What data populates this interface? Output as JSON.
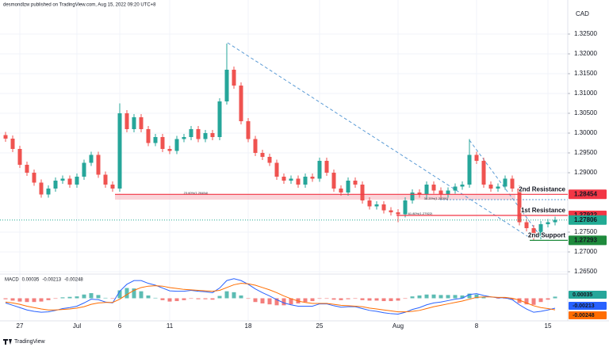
{
  "header": "desmondlzw published on TradingView.com, Aug 15, 2022 09:20 UTC+8",
  "footer": "TradingView",
  "chart_data": {
    "type": "candlestick",
    "currency": "CAD",
    "up_color": "#26a69a",
    "down_color": "#ef5350",
    "categories": [
      null,
      null,
      "27",
      null,
      null,
      null,
      null,
      null,
      null,
      null,
      "Jul",
      null,
      null,
      null,
      null,
      null,
      "6",
      null,
      null,
      null,
      null,
      null,
      null,
      "11",
      null,
      null,
      null,
      null,
      null,
      null,
      null,
      null,
      null,
      null,
      "18",
      null,
      null,
      null,
      null,
      null,
      null,
      null,
      null,
      null,
      "25",
      null,
      null,
      null,
      null,
      null,
      null,
      null,
      null,
      null,
      null,
      "Aug",
      null,
      null,
      null,
      null,
      null,
      null,
      null,
      null,
      null,
      null,
      "8",
      null,
      null,
      null,
      null,
      null,
      null,
      null,
      null,
      null,
      "15",
      null
    ],
    "open": [
      1.2995,
      1.2986,
      1.296,
      1.292,
      1.29,
      1.2875,
      1.2845,
      1.286,
      1.288,
      1.2885,
      1.287,
      1.289,
      1.2925,
      1.2945,
      1.2895,
      1.287,
      1.286,
      1.305,
      1.301,
      1.304,
      1.301,
      1.2975,
      1.299,
      1.296,
      1.2955,
      1.2985,
      1.299,
      1.301,
      1.2985,
      1.3,
      1.299,
      1.308,
      1.316,
      1.312,
      1.303,
      1.2985,
      1.295,
      1.294,
      1.2925,
      1.289,
      1.288,
      1.2885,
      1.287,
      1.289,
      1.2885,
      1.293,
      1.29,
      1.286,
      1.285,
      1.288,
      1.287,
      1.283,
      1.2815,
      1.282,
      1.2805,
      1.28,
      1.2795,
      1.283,
      1.285,
      1.2845,
      1.287,
      1.2855,
      1.2845,
      1.2855,
      1.2865,
      1.287,
      1.2945,
      1.293,
      1.287,
      1.286,
      1.2865,
      1.2885,
      1.286,
      1.2775,
      1.276,
      1.274,
      1.277,
      1.2775
    ],
    "high": [
      1.3003,
      1.2994,
      1.2968,
      1.2928,
      1.2908,
      1.2883,
      1.2868,
      1.2888,
      1.2893,
      1.2893,
      1.2898,
      1.2933,
      1.2953,
      1.2953,
      1.2903,
      1.2878,
      1.3075,
      1.3058,
      1.3048,
      1.3048,
      1.3018,
      1.2998,
      1.2998,
      1.2968,
      1.2993,
      1.2998,
      1.3018,
      1.3018,
      1.3008,
      1.3008,
      1.3088,
      1.3226,
      1.3168,
      1.3128,
      1.3038,
      1.2993,
      1.2958,
      1.2948,
      1.2933,
      1.2898,
      1.2893,
      1.2893,
      1.2898,
      1.2898,
      1.2938,
      1.2938,
      1.2908,
      1.2868,
      1.2888,
      1.2888,
      1.2878,
      1.2838,
      1.2828,
      1.2828,
      1.2813,
      1.2808,
      1.2838,
      1.2858,
      1.2858,
      1.2878,
      1.2878,
      1.2863,
      1.2863,
      1.2873,
      1.2878,
      1.2985,
      1.2953,
      1.2938,
      1.2878,
      1.2873,
      1.2893,
      1.2893,
      1.2868,
      1.2783,
      1.2768,
      1.2778,
      1.2783,
      1.2789
    ],
    "low": [
      1.2978,
      1.2952,
      1.2912,
      1.2892,
      1.2867,
      1.2837,
      1.2837,
      1.2852,
      1.2872,
      1.2862,
      1.2862,
      1.2882,
      1.2917,
      1.2887,
      1.2862,
      1.2852,
      1.2852,
      1.3002,
      1.3002,
      1.3002,
      1.2967,
      1.2967,
      1.2952,
      1.2947,
      1.2947,
      1.2977,
      1.2982,
      1.2977,
      1.2977,
      1.2982,
      1.2982,
      1.3072,
      1.3112,
      1.3022,
      1.2977,
      1.2942,
      1.2932,
      1.2917,
      1.2882,
      1.2872,
      1.2872,
      1.2862,
      1.2862,
      1.2877,
      1.2877,
      1.2892,
      1.2852,
      1.2842,
      1.2842,
      1.2862,
      1.2822,
      1.2807,
      1.2807,
      1.2797,
      1.2792,
      1.2775,
      1.2787,
      1.2822,
      1.2837,
      1.2837,
      1.2847,
      1.2837,
      1.2837,
      1.2847,
      1.2857,
      1.2862,
      1.2922,
      1.2862,
      1.2852,
      1.2852,
      1.2857,
      1.2852,
      1.2767,
      1.2752,
      1.2729,
      1.2732,
      1.2762,
      1.2767
    ],
    "close": [
      1.2986,
      1.296,
      1.292,
      1.29,
      1.2875,
      1.2845,
      1.286,
      1.288,
      1.2885,
      1.287,
      1.289,
      1.2925,
      1.2945,
      1.2895,
      1.287,
      1.286,
      1.305,
      1.301,
      1.304,
      1.301,
      1.2975,
      1.299,
      1.296,
      1.2955,
      1.2985,
      1.299,
      1.301,
      1.2985,
      1.3,
      1.299,
      1.308,
      1.316,
      1.312,
      1.303,
      1.2985,
      1.295,
      1.294,
      1.2925,
      1.289,
      1.288,
      1.2885,
      1.287,
      1.289,
      1.2885,
      1.293,
      1.29,
      1.286,
      1.285,
      1.288,
      1.287,
      1.283,
      1.2815,
      1.282,
      1.2805,
      1.28,
      1.2795,
      1.283,
      1.285,
      1.2845,
      1.287,
      1.2855,
      1.2845,
      1.2855,
      1.2865,
      1.287,
      1.2945,
      1.293,
      1.287,
      1.286,
      1.2865,
      1.2885,
      1.286,
      1.2775,
      1.276,
      1.274,
      1.277,
      1.2775,
      1.2781
    ],
    "ylim": [
      1.2646,
      1.3316
    ],
    "yticks": [
      {
        "value": 1.325,
        "label": "1.32500"
      },
      {
        "value": 1.32,
        "label": "1.32000"
      },
      {
        "value": 1.315,
        "label": "1.31500"
      },
      {
        "value": 1.31,
        "label": "1.31000"
      },
      {
        "value": 1.305,
        "label": "1.30500"
      },
      {
        "value": 1.3,
        "label": "1.30000"
      },
      {
        "value": 1.295,
        "label": "1.29500"
      },
      {
        "value": 1.29,
        "label": "1.29000"
      },
      {
        "value": 1.275,
        "label": "1.27500"
      },
      {
        "value": 1.27,
        "label": "1.27000"
      },
      {
        "value": 1.265,
        "label": "1.26500"
      }
    ],
    "grid": true,
    "levels": [
      {
        "label": "2nd Resistance",
        "value": 1.28454,
        "color": "#f23645"
      },
      {
        "label": "1st Resistance",
        "value": 1.27922,
        "color": "#f23645"
      },
      {
        "label": "2nd Support",
        "value": 1.27293,
        "color": "#1e8a3c"
      }
    ],
    "last_price": 1.27806,
    "last_color": "#22ab94",
    "fib_labels": [
      "23.60%(1.28454)",
      "38.20%(1.28291)",
      "61.80%(1.27922)"
    ],
    "macd": {
      "title": "MACD",
      "ylim": [
        -0.0045,
        0.0045
      ],
      "histogram": {
        "up_color": "#26a69a",
        "down_color": "#ef5350",
        "values": [
          -0.0002,
          -0.0005,
          -0.0007,
          -0.0008,
          -0.0008,
          -0.0007,
          -0.0004,
          -0.0001,
          0.0002,
          0.0003,
          0.0004,
          0.0008,
          0.0011,
          0.0007,
          0.0001,
          -0.0001,
          0.0017,
          0.0022,
          0.0021,
          0.0015,
          0.0006,
          0.0001,
          -0.0004,
          -0.0007,
          -0.0006,
          -0.0004,
          -0.0001,
          -0.0002,
          -0.0002,
          -0.0003,
          0.0005,
          0.0015,
          0.0013,
          0.0006,
          -0.0001,
          -0.0008,
          -0.0011,
          -0.0013,
          -0.0015,
          -0.0015,
          -0.0013,
          -0.0011,
          -0.0008,
          -0.0006,
          -0.0001,
          -0.0001,
          -0.0003,
          -0.0004,
          -0.0002,
          -0.0001,
          -0.0004,
          -0.0005,
          -0.0005,
          -0.0006,
          -0.0006,
          -0.0005,
          -0.0001,
          0.0004,
          0.0006,
          0.0008,
          0.0008,
          0.0007,
          0.0007,
          0.0007,
          0.0006,
          0.001,
          0.0008,
          0.0003,
          0,
          -0.0001,
          -0.0001,
          -0.0003,
          -0.001,
          -0.0013,
          -0.0014,
          -0.0008,
          -0.0003,
          0.00035
        ]
      },
      "line": {
        "color": "#2962ff",
        "values": [
          -0.001,
          -0.0015,
          -0.002,
          -0.0025,
          -0.0028,
          -0.003,
          -0.0029,
          -0.0026,
          -0.0022,
          -0.002,
          -0.0017,
          -0.001,
          -0.0002,
          -0.0003,
          -0.0008,
          -0.001,
          0.0015,
          0.003,
          0.0038,
          0.0038,
          0.0032,
          0.0028,
          0.0022,
          0.0016,
          0.0015,
          0.0015,
          0.0017,
          0.0015,
          0.0014,
          0.0012,
          0.0022,
          0.0038,
          0.0042,
          0.0038,
          0.003,
          0.002,
          0.0012,
          0.0005,
          -0.0003,
          -0.001,
          -0.0014,
          -0.0017,
          -0.0017,
          -0.0017,
          -0.0012,
          -0.0012,
          -0.0016,
          -0.0019,
          -0.0018,
          -0.0018,
          -0.0022,
          -0.0026,
          -0.0028,
          -0.0031,
          -0.0033,
          -0.0034,
          -0.003,
          -0.0024,
          -0.002,
          -0.0014,
          -0.001,
          -0.0008,
          -0.0005,
          -0.0002,
          0,
          0.0008,
          0.001,
          0.0006,
          0.0003,
          0.0001,
          0.0001,
          -0.0003,
          -0.0014,
          -0.0023,
          -0.003,
          -0.0028,
          -0.0025,
          -0.00213
        ]
      },
      "signal": {
        "color": "#ff6d00",
        "values": [
          -0.0008,
          -0.001,
          -0.0013,
          -0.0017,
          -0.002,
          -0.0023,
          -0.0025,
          -0.0025,
          -0.0024,
          -0.0023,
          -0.0021,
          -0.0018,
          -0.0013,
          -0.001,
          -0.0009,
          -0.0009,
          -0.0002,
          0.0008,
          0.0017,
          0.0023,
          0.0026,
          0.0027,
          0.0026,
          0.0023,
          0.0021,
          0.0019,
          0.0018,
          0.0017,
          0.0016,
          0.0015,
          0.0017,
          0.0023,
          0.0029,
          0.0032,
          0.0031,
          0.0028,
          0.0023,
          0.0018,
          0.0012,
          0.0005,
          -0.0001,
          -0.0006,
          -0.0009,
          -0.0011,
          -0.0011,
          -0.0011,
          -0.0013,
          -0.0015,
          -0.0016,
          -0.0017,
          -0.0018,
          -0.0021,
          -0.0023,
          -0.0025,
          -0.0027,
          -0.0029,
          -0.0029,
          -0.0028,
          -0.0026,
          -0.0022,
          -0.0018,
          -0.0015,
          -0.0012,
          -0.0009,
          -0.0006,
          -0.0002,
          0.0002,
          0.0003,
          0.0003,
          0.0002,
          0.0002,
          0,
          -0.0004,
          -0.001,
          -0.0016,
          -0.002,
          -0.0022,
          -0.00248
        ]
      }
    }
  }
}
